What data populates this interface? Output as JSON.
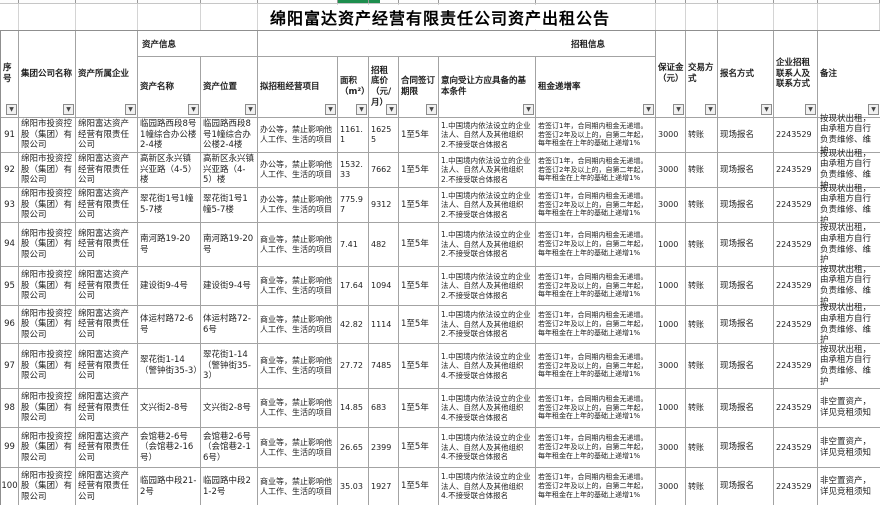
{
  "app": {
    "accent_green": "#1e8e4e"
  },
  "icons": {
    "filter_dropdown": "▼"
  },
  "title": "绵阳富达资产经营有限责任公司资产出租公告",
  "header": {
    "serial": "序号",
    "group_company": "集团公司名称",
    "asset_owner": "资产所属企业",
    "asset_info_group": "资产信息",
    "asset_name": "资产名称",
    "asset_location": "资产位置",
    "rent_info_group": "招租信息",
    "project": "拟招租经营项目",
    "area": "面积（m²）",
    "base_price": "招租底价（元/月）",
    "term": "合同签订期限",
    "conditions": "意向受让方应具备的基本条件",
    "increase": "租金递增率",
    "deposit": "保证金（元）",
    "trade_method": "交易方式",
    "signup_method": "报名方式",
    "contact": "企业招租联系人及联系方式",
    "remark": "备注"
  },
  "rows": [
    {
      "no": "91",
      "group": "绵阳市投资控股（集团）有限公司",
      "owner": "绵阳富达资产经营有限责任公司",
      "name": "临园路西段8号1幢综合办公楼2-4楼",
      "location": "临园路西段8号1幢综合办公楼2-4楼",
      "project": "办公等，禁止影响他人工作、生活的项目",
      "area": "1161.1",
      "price": "16255",
      "term": "1至5年",
      "conditions": "1.中国境内依法设立的企业法人、自然人及其他组织\n2.不接受联合体报名",
      "increase": "若签订1年，合同期内租金无递增。\n若签订2年及以上的，自第二年起，\n每年租金在上年的基础上递增1%",
      "deposit": "3000",
      "trade": "转账",
      "signup": "现场报名",
      "contact": "2243529",
      "remark": "按现状出租，由承租方自行负责维修、维护"
    },
    {
      "no": "92",
      "group": "绵阳市投资控股（集团）有限公司",
      "owner": "绵阳富达资产经营有限责任公司",
      "name": "高新区永兴镇兴亚路（4-5）楼",
      "location": "高新区永兴镇兴亚路（4-5）楼",
      "project": "办公等，禁止影响他人工作、生活的项目",
      "area": "1532.33",
      "price": "7662",
      "term": "1至5年",
      "conditions": "1.中国境内依法设立的企业法人、自然人及其他组织\n2.不接受联合体报名",
      "increase": "若签订1年，合同期内租金无递增。\n若签订2年及以上的，自第二年起，\n每年租金在上年的基础上递增1%",
      "deposit": "3000",
      "trade": "转账",
      "signup": "现场报名",
      "contact": "2243529",
      "remark": "按现状出租，由承租方自行负责维修、维护"
    },
    {
      "no": "93",
      "group": "绵阳市投资控股（集团）有限公司",
      "owner": "绵阳富达资产经营有限责任公司",
      "name": "翠花街1号1幢5-7楼",
      "location": "翠花街1号1幢5-7楼",
      "project": "办公等，禁止影响他人工作、生活的项目",
      "area": "775.97",
      "price": "9312",
      "term": "1至5年",
      "conditions": "1.中国境内依法设立的企业法人、自然人及其他组织\n2.不接受联合体报名",
      "increase": "若签订1年，合同期内租金无递增。\n若签订2年及以上的，自第二年起，\n每年租金在上年的基础上递增1%",
      "deposit": "3000",
      "trade": "转账",
      "signup": "现场报名",
      "contact": "2243529",
      "remark": "按现状出租，由承租方自行负责维修、维护"
    },
    {
      "no": "94",
      "group": "绵阳市投资控股（集团）有限公司",
      "owner": "绵阳富达资产经营有限责任公司",
      "name": "南河路19-20号",
      "location": "南河路19-20号",
      "project": "商业等，禁止影响他人工作、生活的项目",
      "area": "7.41",
      "price": "482",
      "term": "1至5年",
      "conditions": "1.中国境内依法设立的企业法人、自然人及其他组织\n2.不接受联合体报名",
      "increase": "若签订1年，合同期内租金无递增。\n若签订2年及以上的，自第二年起，\n每年租金在上年的基础上递增1%",
      "deposit": "1000",
      "trade": "转账",
      "signup": "现场报名",
      "contact": "2243529",
      "remark": "按现状出租，由承租方自行负责维修、维护"
    },
    {
      "no": "95",
      "group": "绵阳市投资控股（集团）有限公司",
      "owner": "绵阳富达资产经营有限责任公司",
      "name": "建设街9-4号",
      "location": "建设街9-4号",
      "project": "商业等，禁止影响他人工作、生活的项目",
      "area": "17.64",
      "price": "1094",
      "term": "1至5年",
      "conditions": "1.中国境内依法设立的企业法人、自然人及其他组织\n2.不接受联合体报名",
      "increase": "若签订1年，合同期内租金无递增。\n若签订2年及以上的，自第二年起，\n每年租金在上年的基础上递增1%",
      "deposit": "1000",
      "trade": "转账",
      "signup": "现场报名",
      "contact": "2243529",
      "remark": "按现状出租，由承租方自行负责维修、维护"
    },
    {
      "no": "96",
      "group": "绵阳市投资控股（集团）有限公司",
      "owner": "绵阳富达资产经营有限责任公司",
      "name": "体运村路72-6号",
      "location": "体运村路72-6号",
      "project": "商业等，禁止影响他人工作、生活的项目",
      "area": "42.82",
      "price": "1114",
      "term": "1至5年",
      "conditions": "1.中国境内依法设立的企业法人、自然人及其他组织\n2.不接受联合体报名",
      "increase": "若签订1年，合同期内租金无递增。\n若签订2年及以上的，自第二年起，\n每年租金在上年的基础上递增1%",
      "deposit": "1000",
      "trade": "转账",
      "signup": "现场报名",
      "contact": "2243529",
      "remark": "按现状出租，由承租方自行负责维修、维护"
    },
    {
      "no": "97",
      "group": "绵阳市投资控股（集团）有限公司",
      "owner": "绵阳富达资产经营有限责任公司",
      "name": "翠花街1-14（警钟街35-3）",
      "location": "翠花街1-14（警钟街35-3）",
      "project": "商业等，禁止影响他人工作、生活的项目",
      "area": "27.72",
      "price": "7485",
      "term": "1至5年",
      "conditions": "1.中国境内依法设立的企业法人、自然人及其他组织\n4.不接受联合体报名",
      "increase": "若签订1年，合同期内租金无递增。\n若签订2年及以上的，自第二年起，\n每年租金在上年的基础上递增1%",
      "deposit": "3000",
      "trade": "转账",
      "signup": "现场报名",
      "contact": "2243529",
      "remark": "按现状出租，由承租方自行负责维修、维护"
    },
    {
      "no": "98",
      "group": "绵阳市投资控股（集团）有限公司",
      "owner": "绵阳富达资产经营有限责任公司",
      "name": "文兴街2-8号",
      "location": "文兴街2-8号",
      "project": "商业等，禁止影响他人工作、生活的项目",
      "area": "14.85",
      "price": "683",
      "term": "1至5年",
      "conditions": "1.中国境内依法设立的企业法人、自然人及其他组织\n4.不接受联合体报名",
      "increase": "若签订1年，合同期内租金无递增。\n若签订2年及以上的，自第二年起，\n每年租金在上年的基础上递增1%",
      "deposit": "1000",
      "trade": "转账",
      "signup": "现场报名",
      "contact": "2243529",
      "remark": "非空置资产，详见竞租须知"
    },
    {
      "no": "99",
      "group": "绵阳市投资控股（集团）有限公司",
      "owner": "绵阳富达资产经营有限责任公司",
      "name": "会馆巷2-6号（会馆巷2-16号）",
      "location": "会馆巷2-6号（会馆巷2-16号）",
      "project": "商业等，禁止影响他人工作、生活的项目",
      "area": "26.65",
      "price": "2399",
      "term": "1至5年",
      "conditions": "1.中国境内依法设立的企业法人、自然人及其他组织\n4.不接受联合体报名",
      "increase": "若签订1年，合同期内租金无递增。\n若签订2年及以上的，自第二年起，\n每年租金在上年的基础上递增1%",
      "deposit": "3000",
      "trade": "转账",
      "signup": "现场报名",
      "contact": "2243529",
      "remark": "非空置资产，详见竞租须知"
    },
    {
      "no": "100",
      "group": "绵阳市投资控股（集团）有限公司",
      "owner": "绵阳富达资产经营有限责任公司",
      "name": "临园路中段21-2号",
      "location": "临园路中段21-2号",
      "project": "商业等，禁止影响他人工作、生活的项目",
      "area": "35.03",
      "price": "1927",
      "term": "1至5年",
      "conditions": "1.中国境内依法设立的企业法人、自然人及其他组织\n4.不接受联合体报名",
      "increase": "若签订1年，合同期内租金无递增。\n若签订2年及以上的，自第二年起，\n每年租金在上年的基础上递增1%",
      "deposit": "3000",
      "trade": "转账",
      "signup": "现场报名",
      "contact": "2243529",
      "remark": "非空置资产，详见竞租须知"
    }
  ]
}
